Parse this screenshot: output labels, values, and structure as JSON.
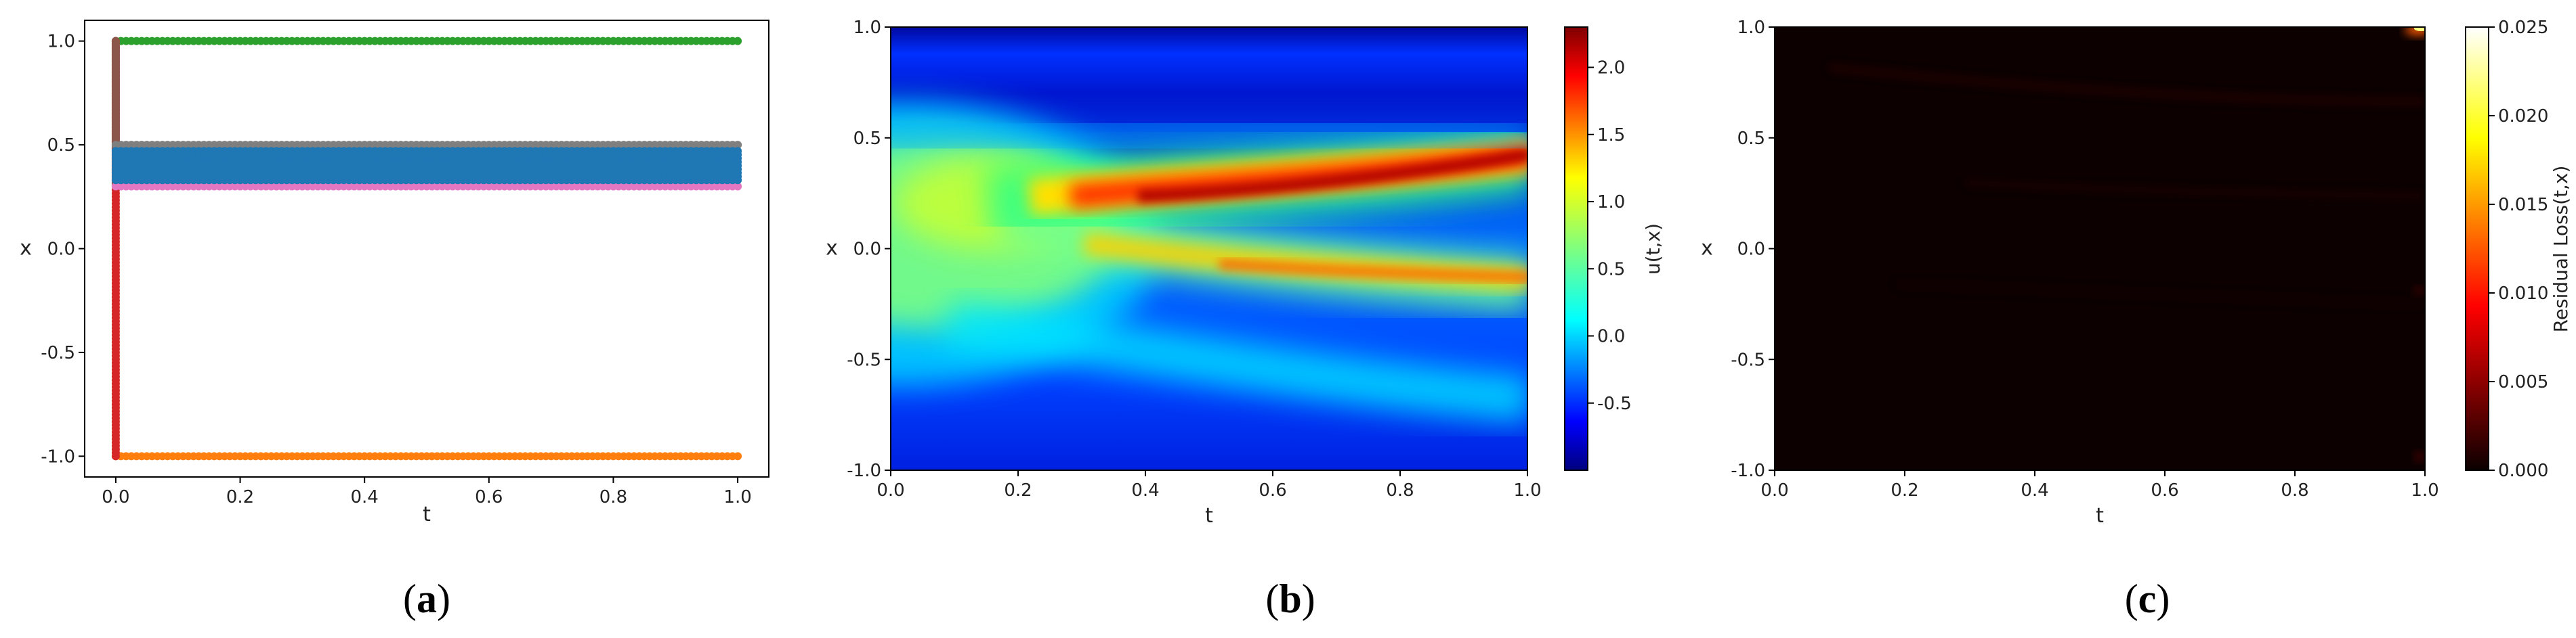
{
  "colors": {
    "green": "#2ca02c",
    "orange": "#ff7f0e",
    "red": "#d62728",
    "brown": "#8c564b",
    "gray": "#7f7f7f",
    "blue": "#1f77b4",
    "pink": "#e377c2"
  },
  "chart_data": [
    {
      "panel": "(a)",
      "panel_letter": "a",
      "type": "scatter",
      "xlabel": "t",
      "ylabel": "x",
      "xlim": [
        -0.05,
        1.05
      ],
      "ylim": [
        -1.1,
        1.1
      ],
      "xticks": [
        "0.0",
        "0.2",
        "0.4",
        "0.6",
        "0.8",
        "1.0"
      ],
      "yticks": [
        "-1.0",
        "-0.5",
        "0.0",
        "0.5",
        "1.0"
      ],
      "series": [
        {
          "color": "green",
          "kind": "hline",
          "y": 1.0,
          "x": [
            0.0,
            1.0
          ]
        },
        {
          "color": "orange",
          "kind": "hline",
          "y": -1.0,
          "x": [
            0.0,
            1.0
          ]
        },
        {
          "color": "red",
          "kind": "vline",
          "x": 0.0,
          "y": [
            -1.0,
            1.0
          ]
        },
        {
          "color": "brown",
          "kind": "vline",
          "x": 0.0,
          "y": [
            0.3,
            1.0
          ]
        },
        {
          "color": "gray",
          "kind": "hline",
          "y": 0.5,
          "x": [
            0.0,
            1.0
          ]
        },
        {
          "color": "pink",
          "kind": "hline",
          "y": 0.3,
          "x": [
            0.0,
            1.0
          ]
        },
        {
          "color": "blue",
          "kind": "band",
          "y": [
            0.33,
            0.47
          ],
          "x": [
            0.0,
            1.0
          ]
        }
      ]
    },
    {
      "panel": "(b)",
      "panel_letter": "b",
      "type": "heatmap",
      "xlabel": "t",
      "ylabel": "x",
      "colorbar_label": "u(t,x)",
      "colormap": "jet",
      "xlim": [
        0.0,
        1.0
      ],
      "ylim": [
        -1.0,
        1.0
      ],
      "vlim": [
        -1.0,
        2.3
      ],
      "xticks": [
        "0.0",
        "0.2",
        "0.4",
        "0.6",
        "0.8",
        "1.0"
      ],
      "yticks": [
        "-1.0",
        "-0.5",
        "0.0",
        "0.5",
        "1.0"
      ],
      "colorbar_ticks": [
        "-0.5",
        "0.0",
        "0.5",
        "1.0",
        "1.5",
        "2.0"
      ],
      "field_description": "Gaussian-like pulse near x=0 that splits after t≈0.25 into a strong upper branch (peak ≈2.2 near x≈0.35–0.42) and a weaker lower branch (≈1.3 near x≈-0.1) plus a faint third branch toward x≈-0.5; background ≈ -0.9 to -0.3"
    },
    {
      "panel": "(c)",
      "panel_letter": "c",
      "type": "heatmap",
      "xlabel": "t",
      "ylabel": "x",
      "colorbar_label": "Residual Loss(t,x)",
      "colormap": "hot",
      "xlim": [
        0.0,
        1.0
      ],
      "ylim": [
        -1.0,
        1.0
      ],
      "vlim": [
        0.0,
        0.025
      ],
      "xticks": [
        "0.0",
        "0.2",
        "0.4",
        "0.6",
        "0.8",
        "1.0"
      ],
      "yticks": [
        "-1.0",
        "-0.5",
        "0.0",
        "0.5",
        "1.0"
      ],
      "colorbar_ticks": [
        "0.000",
        "0.005",
        "0.010",
        "0.015",
        "0.020",
        "0.025"
      ],
      "field_description": "Near-zero residual everywhere (≈0.000–0.002), small bright spot at top-right corner (t≈1, x≈1)"
    }
  ]
}
